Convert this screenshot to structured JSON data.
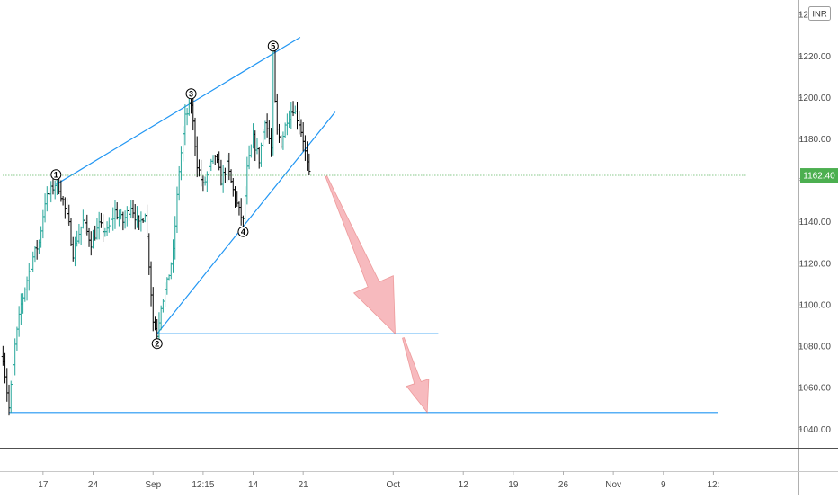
{
  "currency_badge": "INR",
  "last_price": "1162.40",
  "colors": {
    "up": "#26a69a",
    "down": "#000000",
    "trendline": "#2196f3",
    "arrow_fill": "#f4a3a8",
    "arrow_stroke": "#e57373",
    "price_tag": "#4caf50",
    "axis_text": "#4a4a4a"
  },
  "chart_data": {
    "type": "ohlc",
    "y_axis": {
      "ylim": [
        1031,
        1247
      ],
      "ticks": [
        1040,
        1060,
        1080,
        1100,
        1120,
        1140,
        1160,
        1180,
        1200,
        1220,
        1240
      ],
      "tick_labels": [
        "1040.00",
        "1060.00",
        "1080.00",
        "1100.00",
        "1120.00",
        "1140.00",
        "1160.00",
        "1180.00",
        "1200.00",
        "1220.00",
        "1240.00"
      ]
    },
    "x_axis": {
      "unit": "trading days from 12 Aug",
      "xlim": [
        -0.3,
        79.5
      ],
      "ticks": [
        {
          "x": 4,
          "label": "17"
        },
        {
          "x": 9,
          "label": "24"
        },
        {
          "x": 15,
          "label": "Sep"
        },
        {
          "x": 20,
          "label": "12:15"
        },
        {
          "x": 25,
          "label": "14"
        },
        {
          "x": 30,
          "label": "21"
        },
        {
          "x": 39,
          "label": "Oct"
        },
        {
          "x": 46,
          "label": "12"
        },
        {
          "x": 51,
          "label": "19"
        },
        {
          "x": 56,
          "label": "26"
        },
        {
          "x": 61,
          "label": "Nov"
        },
        {
          "x": 66,
          "label": "9"
        },
        {
          "x": 71,
          "label": "12:"
        }
      ]
    },
    "price_path": [
      [
        0.0,
        1075
      ],
      [
        0.6,
        1050
      ],
      [
        1.2,
        1080
      ],
      [
        1.8,
        1100
      ],
      [
        2.4,
        1112
      ],
      [
        3.0,
        1123
      ],
      [
        3.6,
        1130
      ],
      [
        4.2,
        1150
      ],
      [
        4.8,
        1155
      ],
      [
        5.4,
        1160
      ],
      [
        6.0,
        1150
      ],
      [
        6.6,
        1138
      ],
      [
        7.0,
        1125
      ],
      [
        7.4,
        1132
      ],
      [
        8.0,
        1140
      ],
      [
        8.8,
        1130
      ],
      [
        9.6,
        1138
      ],
      [
        10.4,
        1135
      ],
      [
        11.2,
        1145
      ],
      [
        12.0,
        1140
      ],
      [
        12.8,
        1148
      ],
      [
        13.6,
        1138
      ],
      [
        14.2,
        1145
      ],
      [
        14.6,
        1120
      ],
      [
        15.0,
        1092
      ],
      [
        15.4,
        1086
      ],
      [
        15.8,
        1100
      ],
      [
        16.4,
        1110
      ],
      [
        17.0,
        1125
      ],
      [
        17.6,
        1165
      ],
      [
        18.2,
        1190
      ],
      [
        18.8,
        1197
      ],
      [
        19.4,
        1168
      ],
      [
        20.0,
        1157
      ],
      [
        20.6,
        1165
      ],
      [
        21.2,
        1172
      ],
      [
        21.8,
        1160
      ],
      [
        22.4,
        1167
      ],
      [
        23.0,
        1155
      ],
      [
        23.6,
        1145
      ],
      [
        24.0,
        1140
      ],
      [
        24.4,
        1165
      ],
      [
        25.0,
        1180
      ],
      [
        25.6,
        1170
      ],
      [
        26.2,
        1190
      ],
      [
        26.8,
        1175
      ],
      [
        27.0,
        1220
      ],
      [
        27.3,
        1185
      ],
      [
        27.8,
        1178
      ],
      [
        28.4,
        1190
      ],
      [
        29.0,
        1195
      ],
      [
        29.6,
        1188
      ],
      [
        30.0,
        1180
      ],
      [
        30.3,
        1170
      ],
      [
        30.6,
        1162
      ]
    ],
    "trendlines": [
      {
        "name": "upper-channel",
        "points": [
          [
            5.3,
            1158
          ],
          [
            29.7,
            1229
          ]
        ]
      },
      {
        "name": "lower-channel",
        "points": [
          [
            15.4,
            1086
          ],
          [
            33.2,
            1193
          ]
        ]
      },
      {
        "name": "support-1",
        "points": [
          [
            15.4,
            1086
          ],
          [
            43.5,
            1086
          ]
        ]
      },
      {
        "name": "support-2",
        "points": [
          [
            0.6,
            1048
          ],
          [
            71.5,
            1048
          ]
        ]
      },
      {
        "name": "price-level",
        "points": [
          [
            0,
            1162.4
          ],
          [
            74.3,
            1162.4
          ]
        ],
        "style": "dotted"
      }
    ],
    "wave_labels": [
      {
        "label": "1",
        "x": 5.3,
        "y": 1158
      },
      {
        "label": "2",
        "x": 15.4,
        "y": 1086
      },
      {
        "label": "3",
        "x": 18.8,
        "y": 1197
      },
      {
        "label": "4",
        "x": 24.0,
        "y": 1140
      },
      {
        "label": "5",
        "x": 27.0,
        "y": 1220
      }
    ],
    "projection_arrows": [
      {
        "from": [
          32.3,
          1162
        ],
        "to": [
          39.2,
          1086
        ]
      },
      {
        "from": [
          40.0,
          1084
        ],
        "to": [
          42.4,
          1048
        ]
      }
    ]
  }
}
